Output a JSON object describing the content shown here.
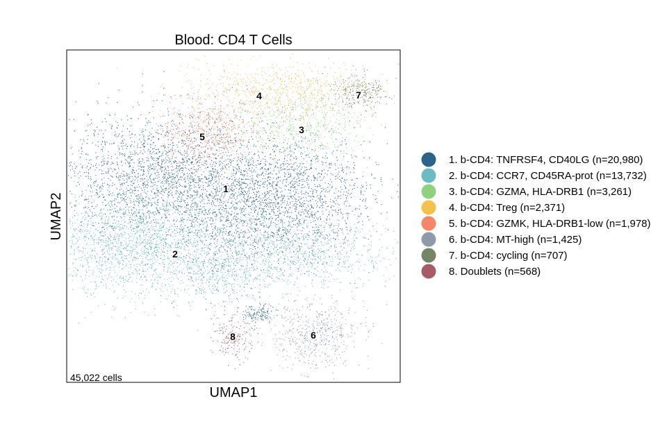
{
  "chart_data": {
    "type": "scatter",
    "title": "Blood: CD4 T Cells",
    "xlabel": "UMAP1",
    "ylabel": "UMAP2",
    "cell_count_label": "45,022 cells",
    "legend_position": "right",
    "grid": false,
    "clusters": [
      {
        "id": "1",
        "name": "1. b-CD4: TNFRSF4, CD40LG (n=20,980)",
        "n": 20980,
        "color": "#2b6389"
      },
      {
        "id": "2",
        "name": "2. b-CD4: CCR7, CD45RA-prot (n=13,732)",
        "n": 13732,
        "color": "#6bbcc2"
      },
      {
        "id": "3",
        "name": "3. b-CD4: GZMA, HLA-DRB1 (n=3,261)",
        "n": 3261,
        "color": "#8fd17f"
      },
      {
        "id": "4",
        "name": "4. b-CD4: Treg (n=2,371)",
        "n": 2371,
        "color": "#f2c14e"
      },
      {
        "id": "5",
        "name": "5. b-CD4: GZMK, HLA-DRB1-low (n=1,978)",
        "n": 1978,
        "color": "#f5866a"
      },
      {
        "id": "6",
        "name": "6. b-CD4: MT-high (n=1,425)",
        "n": 1425,
        "color": "#8e9aab"
      },
      {
        "id": "7",
        "name": "7. b-CD4: cycling (n=707)",
        "n": 707,
        "color": "#768468"
      },
      {
        "id": "8",
        "name": "8. Doublets (n=568)",
        "n": 568,
        "color": "#a85c67"
      }
    ]
  }
}
